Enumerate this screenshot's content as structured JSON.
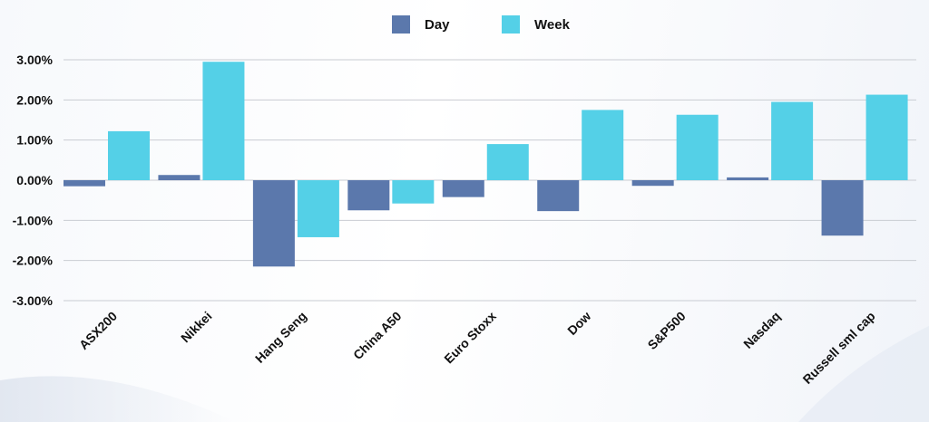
{
  "chart_data": {
    "type": "bar",
    "categories": [
      "ASX200",
      "Nikkei",
      "Hang Seng",
      "China A50",
      "Euro Stoxx",
      "Dow",
      "S&P500",
      "Nasdaq",
      "Russell sml cap"
    ],
    "series": [
      {
        "name": "Day",
        "color": "#5b78ac",
        "values": [
          -0.15,
          0.13,
          -2.15,
          -0.75,
          -0.42,
          -0.77,
          -0.14,
          0.07,
          -1.38
        ]
      },
      {
        "name": "Week",
        "color": "#54d0e7",
        "values": [
          1.22,
          2.95,
          -1.42,
          -0.58,
          0.9,
          1.75,
          1.63,
          1.95,
          2.13
        ]
      }
    ],
    "yticks": [
      "3.00%",
      "2.00%",
      "1.00%",
      "0.00%",
      "-1.00%",
      "-2.00%",
      "-3.00%"
    ],
    "ylim": [
      -3,
      3
    ],
    "grid": true,
    "legend_position": "top-center",
    "title": "",
    "xlabel": "",
    "ylabel": ""
  }
}
